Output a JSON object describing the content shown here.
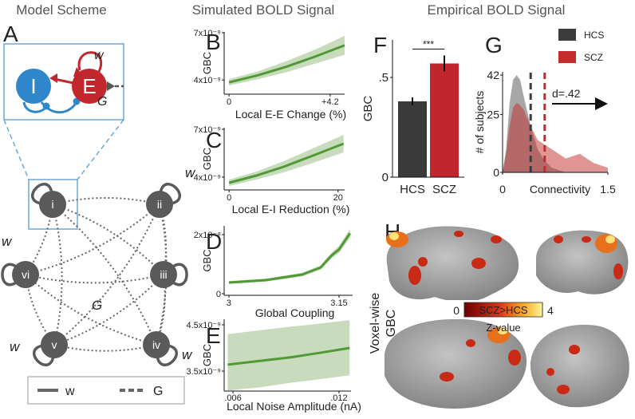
{
  "headers": [
    "Model Scheme",
    "Simulated BOLD Signal",
    "Empirical BOLD Signal"
  ],
  "panel_a": {
    "label": "A",
    "inset": {
      "i_node": "I",
      "e_node": "E",
      "w": "w",
      "g": "G"
    },
    "nodes": [
      "i",
      "ii",
      "iii",
      "iv",
      "v",
      "vi"
    ],
    "w_labels": [
      "w",
      "w",
      "w",
      "w"
    ],
    "g_label": "G",
    "legend": [
      "w",
      "G"
    ]
  },
  "chart_data": [
    {
      "type": "line",
      "label": "B",
      "ylabel": "GBC",
      "xlabel": "Local E-E Change (%)",
      "x": [
        0,
        1.2,
        2.4,
        3.6,
        4.8
      ],
      "values": [
        3.85e-09,
        4.3e-09,
        4.85e-09,
        5.5e-09,
        6.2e-09
      ],
      "lower": [
        3.65e-09,
        4.05e-09,
        4.5e-09,
        5.05e-09,
        5.6e-09
      ],
      "upper": [
        4.05e-09,
        4.55e-09,
        5.2e-09,
        5.95e-09,
        6.8e-09
      ],
      "xlim": [
        -0.2,
        4.8
      ],
      "ylim": [
        3.1e-09,
        7.05e-09
      ],
      "xticks": [
        0,
        {
          "value": 4.2,
          "label": "+4.2"
        }
      ],
      "yticks": [
        {
          "value": 7e-09,
          "label": "7x10⁻⁹"
        },
        {
          "value": 4e-09,
          "label": "4x10⁻⁹"
        }
      ],
      "color": "#4f9a35",
      "band_color": "#c9dbbd"
    },
    {
      "type": "line",
      "label": "C",
      "ylabel": "GBC",
      "xlabel": "Local E-I Reduction (%)",
      "x": [
        0,
        5,
        10,
        15,
        21
      ],
      "values": [
        3.65e-09,
        4.1e-09,
        4.65e-09,
        5.3e-09,
        6.1e-09
      ],
      "lower": [
        3.45e-09,
        3.85e-09,
        4.3e-09,
        4.85e-09,
        5.55e-09
      ],
      "upper": [
        3.85e-09,
        4.35e-09,
        5e-09,
        5.75e-09,
        6.65e-09
      ],
      "xlim": [
        -0.9,
        21.2
      ],
      "ylim": [
        3.2e-09,
        7.1e-09
      ],
      "xticks": [
        0,
        20
      ],
      "yticks": [
        {
          "value": 7e-09,
          "label": "7x10⁻⁹"
        },
        {
          "value": 4e-09,
          "label": "4x10⁻⁹"
        }
      ],
      "color": "#4f9a35",
      "band_color": "#c9dbbd"
    },
    {
      "type": "line",
      "label": "D",
      "ylabel": "GBC",
      "xlabel": "Global Coupling",
      "x": [
        3.0,
        3.05,
        3.1,
        3.125,
        3.14,
        3.15,
        3.165
      ],
      "values": [
        3.8e-09,
        4.6e-09,
        6.5e-09,
        8.9e-09,
        1.3e-08,
        1.5e-08,
        2.05e-08
      ],
      "lower": [
        3.3e-09,
        4.1e-09,
        5.9e-09,
        8.2e-09,
        1.2e-08,
        1.38e-08,
        1.9e-08
      ],
      "upper": [
        4.3e-09,
        5.1e-09,
        7.1e-09,
        9.6e-09,
        1.4e-08,
        1.62e-08,
        2.2e-08
      ],
      "xlim": [
        2.9935,
        3.1685
      ],
      "ylim": [
        -5.4e-10,
        2.3e-08
      ],
      "xticks": [
        3,
        3.15
      ],
      "yticks": [
        {
          "value": 2e-08,
          "label": "2x10⁻⁸"
        },
        0
      ],
      "color": "#4f9a35",
      "band_color": "#c9dbbd"
    },
    {
      "type": "line",
      "label": "E",
      "ylabel": "GBC",
      "xlabel": "Local Noise Amplitude (nA)",
      "x": [
        0.0057,
        0.0075,
        0.0093,
        0.011,
        0.0126
      ],
      "values": [
        3.64e-09,
        3.72e-09,
        3.8e-09,
        3.9e-09,
        4e-09
      ],
      "lower": [
        3.08e-09,
        3.15e-09,
        3.25e-09,
        3.33e-09,
        3.41e-09
      ],
      "upper": [
        4.3e-09,
        4.38e-09,
        4.46e-09,
        4.53e-09,
        4.6e-09
      ],
      "xlim": [
        0.0055,
        0.01268
      ],
      "ylim": [
        3.07e-09,
        4.62e-09
      ],
      "xticks": [
        {
          "value": 0.006,
          "label": ".006"
        },
        {
          "value": 0.012,
          "label": ".012"
        }
      ],
      "yticks": [
        {
          "value": 4.5e-09,
          "label": "4.5x10⁻⁹"
        },
        {
          "value": 3.5e-09,
          "label": "3.5x10⁻⁹"
        }
      ],
      "color": "#4f9a35",
      "band_color": "#c9dbbd"
    },
    {
      "type": "bar",
      "label": "F",
      "ylabel": "GBC",
      "categories": [
        "HCS",
        "SCZ"
      ],
      "values": [
        0.38,
        0.57
      ],
      "errors": [
        0.02,
        0.04
      ],
      "colors": [
        "#3a3a3a",
        "#c0272d"
      ],
      "ylim": [
        0,
        0.688
      ],
      "yticks": [
        0,
        {
          "value": 0.5,
          "label": ".5"
        }
      ],
      "annotation": "***"
    },
    {
      "type": "density",
      "label": "G",
      "ylabel": "# of subjects",
      "xlabel": "Connectivity",
      "x": [
        0,
        0.05,
        0.1,
        0.15,
        0.2,
        0.25,
        0.3,
        0.4,
        0.5,
        0.6,
        0.7,
        0.8,
        0.9,
        1.0,
        1.1,
        1.2,
        1.3,
        1.4,
        1.5
      ],
      "series": [
        {
          "name": "HCS",
          "color": "#3c3c3c",
          "mean": 0.4,
          "values": [
            0,
            10,
            30,
            40,
            42,
            40,
            33,
            20,
            10,
            5,
            2,
            1,
            0,
            0,
            0,
            0,
            0,
            0,
            0
          ]
        },
        {
          "name": "SCZ",
          "color": "#c22c2c",
          "mean": 0.6,
          "values": [
            0,
            8,
            20,
            28,
            30,
            29,
            27,
            20,
            14,
            12,
            10,
            8,
            6,
            7,
            8,
            6,
            4,
            3,
            2
          ]
        }
      ],
      "xlim": [
        0,
        1.5
      ],
      "ylim": [
        0,
        43.4
      ],
      "xticks": [
        0,
        1.5
      ],
      "yticks": [
        0,
        25,
        42
      ],
      "legend": "upper right",
      "annotation": "d=.42"
    }
  ],
  "panel_h": {
    "label": "H",
    "ylabel": [
      "Voxel-wise",
      "GBC"
    ],
    "colorbar": {
      "title": "SCZ>HCS",
      "label": "Z-value",
      "clim": [
        0,
        4
      ],
      "ticks": [
        0,
        4
      ]
    }
  }
}
